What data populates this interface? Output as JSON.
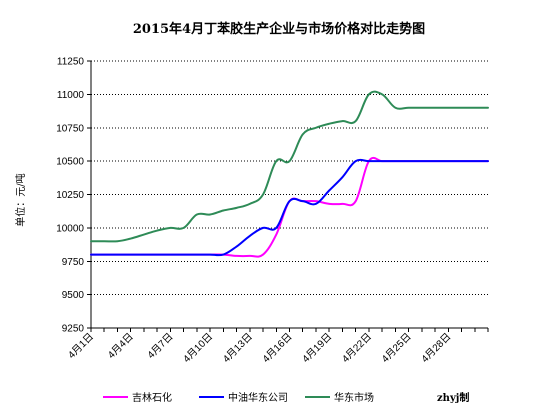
{
  "chart_data": {
    "type": "line",
    "title": "2015年4月丁苯胶生产企业与市场价格对比走势图",
    "ylabel": "单位：元/吨",
    "xlabel": "",
    "ylim": [
      9250,
      11250
    ],
    "yticks": [
      9250,
      9500,
      9750,
      10000,
      10250,
      10500,
      10750,
      11000,
      11250
    ],
    "x_tick_labels": [
      "4月1日",
      "4月4日",
      "4月7日",
      "4月10日",
      "4月13日",
      "4月16日",
      "4月19日",
      "4月22日",
      "4月25日",
      "4月28日"
    ],
    "x": [
      1,
      2,
      3,
      4,
      5,
      6,
      7,
      8,
      9,
      10,
      11,
      12,
      13,
      14,
      15,
      16,
      17,
      18,
      19,
      20,
      21,
      22,
      23,
      24,
      25,
      26,
      27,
      28,
      29,
      30,
      31
    ],
    "grid": "horizontal",
    "legend_position": "bottom",
    "series": [
      {
        "name": "吉林石化",
        "color": "#ff00ff",
        "values": [
          9800,
          9800,
          9800,
          9800,
          9800,
          9800,
          9800,
          9800,
          9800,
          9800,
          9800,
          9790,
          9790,
          9800,
          9950,
          10200,
          10200,
          10200,
          10180,
          10180,
          10200,
          10500,
          10500,
          10500,
          10500,
          10500,
          10500,
          10500,
          10500,
          10500,
          10500
        ]
      },
      {
        "name": "中油华东公司",
        "color": "#0000ff",
        "values": [
          9800,
          9800,
          9800,
          9800,
          9800,
          9800,
          9800,
          9800,
          9800,
          9800,
          9800,
          9860,
          9940,
          10000,
          10000,
          10200,
          10200,
          10180,
          10280,
          10380,
          10500,
          10500,
          10500,
          10500,
          10500,
          10500,
          10500,
          10500,
          10500,
          10500,
          10500
        ]
      },
      {
        "name": "华东市场",
        "color": "#2e8b57",
        "values": [
          9900,
          9900,
          9900,
          9920,
          9950,
          9980,
          10000,
          10000,
          10100,
          10100,
          10130,
          10150,
          10180,
          10250,
          10500,
          10500,
          10700,
          10750,
          10780,
          10800,
          10800,
          11000,
          11000,
          10900,
          10900,
          10900,
          10900,
          10900,
          10900,
          10900,
          10900
        ]
      }
    ],
    "credit": "zhyj制"
  }
}
